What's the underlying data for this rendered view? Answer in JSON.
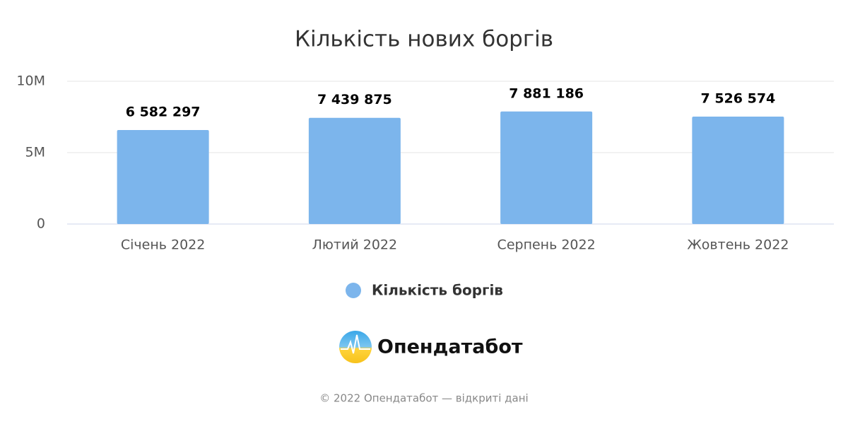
{
  "chart_data": {
    "type": "bar",
    "title": "Кількість нових боргів",
    "categories": [
      "Січень 2022",
      "Лютий 2022",
      "Серпень 2022",
      "Жовтень 2022"
    ],
    "series": [
      {
        "name": "Кількість боргів",
        "color": "#7cb5ec",
        "values": [
          6582297,
          7439875,
          7881186,
          7526574
        ],
        "value_labels": [
          "6 582 297",
          "7 439 875",
          "7 881 186",
          "7 526 574"
        ]
      }
    ],
    "ylim": [
      0,
      10000000
    ],
    "yticks": [
      0,
      {
        "value": 5000000,
        "label": "5M"
      },
      {
        "value": 10000000,
        "label": "10M"
      }
    ],
    "grid": true,
    "legend": "bottom"
  },
  "brand": "Опендатабот",
  "footer": "© 2022 Опендатабот — відкриті дані"
}
